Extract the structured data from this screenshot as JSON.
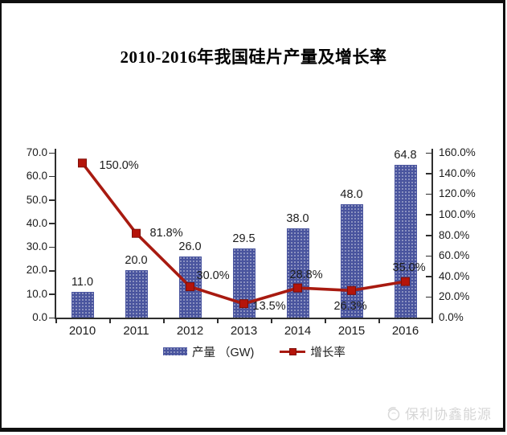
{
  "title": "2010-2016年我国硅片产量及增长率",
  "watermark": {
    "brand": "保利协鑫能源",
    "icon": "swirl-logo"
  },
  "chart_data": {
    "type": "bar+line",
    "title": "2010-2016年我国硅片产量及增长率",
    "categories": [
      "2010",
      "2011",
      "2012",
      "2013",
      "2014",
      "2015",
      "2016"
    ],
    "series": [
      {
        "name": "产量 （GW)",
        "type": "bar",
        "axis": "left",
        "values": [
          11.0,
          20.0,
          26.0,
          29.5,
          38.0,
          48.0,
          64.8
        ],
        "data_labels": [
          "11.0",
          "20.0",
          "26.0",
          "29.5",
          "38.0",
          "48.0",
          "64.8"
        ],
        "color": "#4a55a0"
      },
      {
        "name": "增长率",
        "type": "line",
        "axis": "right",
        "values": [
          150.0,
          81.8,
          30.0,
          13.5,
          28.8,
          26.3,
          35.0
        ],
        "data_labels": [
          "150.0%",
          "81.8%",
          "30.0%",
          "13.5%",
          "28.8%",
          "26.3%",
          "35.0%"
        ],
        "color": "#a81a10",
        "marker": "square",
        "marker_color": "#b5140a"
      }
    ],
    "left_axis": {
      "min": 0,
      "max": 70,
      "tick_labels": [
        "70.0",
        "60.0",
        "50.0",
        "40.0",
        "30.0",
        "20.0",
        "10.0",
        "0.0"
      ]
    },
    "right_axis": {
      "min": 0,
      "max": 160,
      "tick_labels": [
        "160.0%",
        "140.0%",
        "120.0%",
        "100.0%",
        "80.0%",
        "60.0%",
        "40.0%",
        "20.0%",
        "0.0%"
      ]
    },
    "legend": {
      "position": "bottom",
      "items": [
        {
          "label": "产量 （GW)",
          "marker": "bar-swatch"
        },
        {
          "label": "增长率",
          "marker": "line-marker"
        }
      ]
    },
    "grid": false
  }
}
